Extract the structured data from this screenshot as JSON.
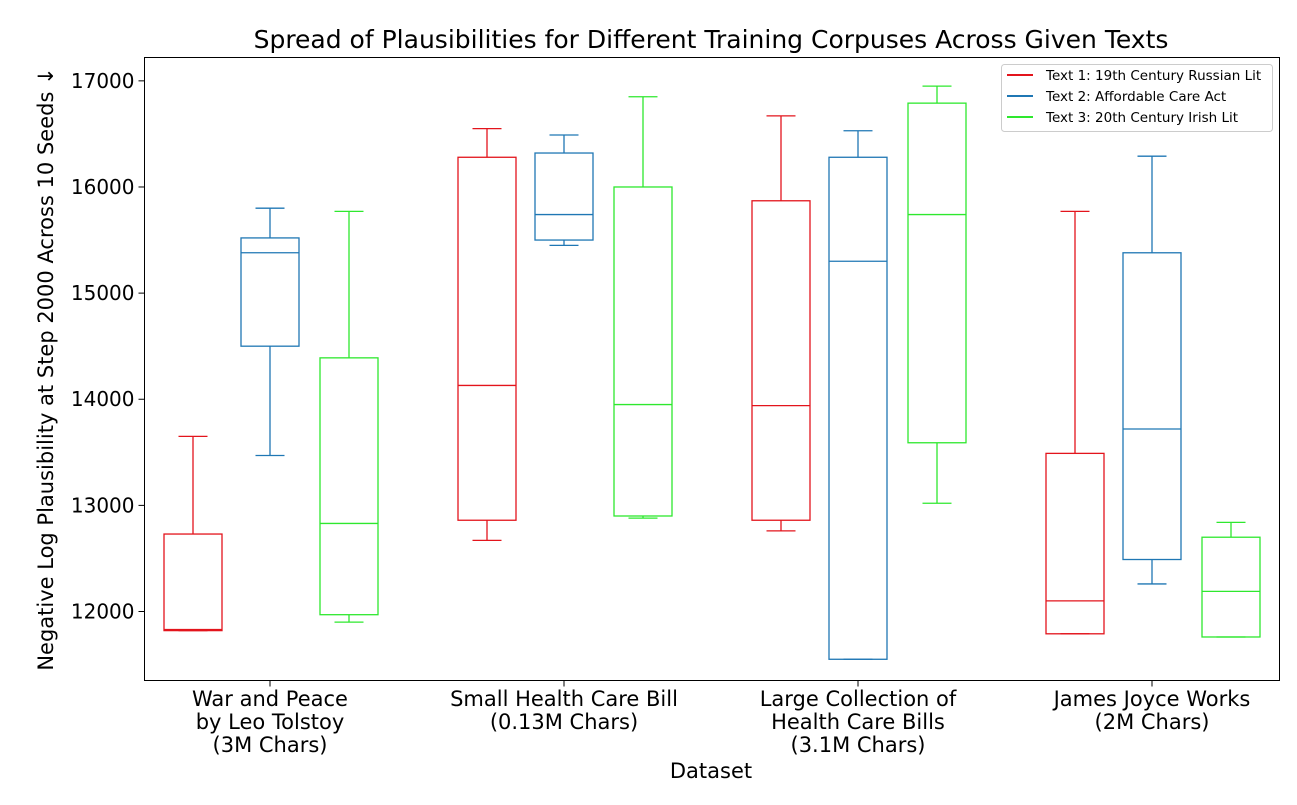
{
  "chart_data": {
    "type": "box",
    "title": "Spread of Plausibilities for Different Training Corpuses Across Given Texts",
    "xlabel": "Dataset",
    "ylabel": "Negative Log Plausibility at Step 2000 Across 10 Seeds ↓",
    "ylim": [
      11350,
      17220
    ],
    "yticks": [
      12000,
      13000,
      14000,
      15000,
      16000,
      17000
    ],
    "grid": false,
    "legend_position": "top-right",
    "categories": [
      [
        "War and Peace",
        "by Leo Tolstoy",
        "(3M Chars)"
      ],
      [
        "Small Health Care Bill",
        "(0.13M Chars)"
      ],
      [
        "Large Collection of",
        "Health Care Bills",
        "(3.1M Chars)"
      ],
      [
        "James Joyce Works",
        "(2M Chars)"
      ]
    ],
    "series": [
      {
        "name": "Text 1: 19th Century Russian Lit",
        "color": "#e3141c",
        "boxes": [
          {
            "whislo": 11820,
            "q1": 11820,
            "med": 11830,
            "q3": 12730,
            "whishi": 13650
          },
          {
            "whislo": 12670,
            "q1": 12860,
            "med": 14130,
            "q3": 16280,
            "whishi": 16550
          },
          {
            "whislo": 12760,
            "q1": 12860,
            "med": 13940,
            "q3": 15870,
            "whishi": 16670
          },
          {
            "whislo": 11790,
            "q1": 11790,
            "med": 12100,
            "q3": 13490,
            "whishi": 15770
          }
        ]
      },
      {
        "name": "Text 2: Affordable Care Act",
        "color": "#1f77b4",
        "boxes": [
          {
            "whislo": 13470,
            "q1": 14500,
            "med": 15380,
            "q3": 15520,
            "whishi": 15800
          },
          {
            "whislo": 15450,
            "q1": 15500,
            "med": 15740,
            "q3": 16320,
            "whishi": 16490
          },
          {
            "whislo": 11550,
            "q1": 11550,
            "med": 15300,
            "q3": 16280,
            "whishi": 16530
          },
          {
            "whislo": 12260,
            "q1": 12490,
            "med": 13720,
            "q3": 15380,
            "whishi": 16290
          }
        ]
      },
      {
        "name": "Text 3: 20th Century Irish Lit",
        "color": "#2ee82e",
        "boxes": [
          {
            "whislo": 11900,
            "q1": 11970,
            "med": 12830,
            "q3": 14390,
            "whishi": 15770
          },
          {
            "whislo": 12880,
            "q1": 12900,
            "med": 13950,
            "q3": 16000,
            "whishi": 16850
          },
          {
            "whislo": 13020,
            "q1": 13590,
            "med": 15740,
            "q3": 16790,
            "whishi": 16950
          },
          {
            "whislo": 11760,
            "q1": 11760,
            "med": 12190,
            "q3": 12700,
            "whishi": 12840
          }
        ]
      }
    ]
  }
}
